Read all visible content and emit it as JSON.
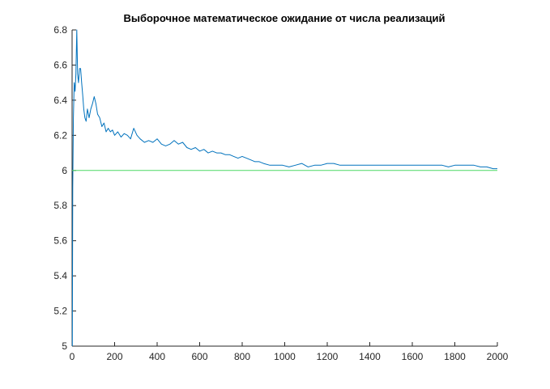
{
  "chart_data": {
    "type": "line",
    "title": "Выборочное математическое ожидание от числа реализаций",
    "xlabel": "",
    "ylabel": "",
    "xlim": [
      0,
      2000
    ],
    "ylim": [
      5,
      6.8
    ],
    "grid": false,
    "x_ticks": [
      "0",
      "200",
      "400",
      "600",
      "800",
      "1000",
      "1200",
      "1400",
      "1600",
      "1800",
      "2000"
    ],
    "y_ticks": [
      "5",
      "5.2",
      "5.4",
      "5.6",
      "5.8",
      "6",
      "6.2",
      "6.4",
      "6.6",
      "6.8"
    ],
    "series": [
      {
        "color": "#0072bd",
        "x": [
          1,
          3,
          6,
          10,
          14,
          18,
          22,
          26,
          30,
          35,
          40,
          45,
          50,
          55,
          60,
          66,
          72,
          80,
          88,
          96,
          104,
          112,
          120,
          130,
          140,
          150,
          160,
          170,
          180,
          190,
          200,
          215,
          230,
          245,
          260,
          275,
          290,
          305,
          320,
          340,
          360,
          380,
          400,
          420,
          440,
          460,
          480,
          500,
          520,
          540,
          560,
          580,
          600,
          620,
          640,
          660,
          680,
          700,
          720,
          740,
          760,
          780,
          800,
          820,
          840,
          860,
          880,
          900,
          930,
          960,
          990,
          1020,
          1050,
          1080,
          1110,
          1140,
          1170,
          1200,
          1230,
          1260,
          1290,
          1320,
          1350,
          1380,
          1410,
          1440,
          1470,
          1500,
          1530,
          1560,
          1590,
          1620,
          1650,
          1680,
          1710,
          1740,
          1770,
          1800,
          1830,
          1860,
          1890,
          1920,
          1950,
          1980,
          2000
        ],
        "y": [
          5.0,
          5.9,
          6.3,
          6.5,
          6.45,
          6.55,
          6.8,
          6.55,
          6.5,
          6.58,
          6.58,
          6.5,
          6.43,
          6.35,
          6.3,
          6.28,
          6.35,
          6.3,
          6.35,
          6.38,
          6.42,
          6.38,
          6.32,
          6.3,
          6.25,
          6.27,
          6.22,
          6.24,
          6.22,
          6.23,
          6.2,
          6.22,
          6.19,
          6.21,
          6.2,
          6.18,
          6.24,
          6.2,
          6.18,
          6.16,
          6.17,
          6.16,
          6.18,
          6.15,
          6.14,
          6.15,
          6.17,
          6.15,
          6.16,
          6.13,
          6.12,
          6.13,
          6.11,
          6.12,
          6.1,
          6.11,
          6.1,
          6.1,
          6.09,
          6.09,
          6.08,
          6.07,
          6.08,
          6.07,
          6.06,
          6.05,
          6.05,
          6.04,
          6.03,
          6.03,
          6.03,
          6.02,
          6.03,
          6.04,
          6.02,
          6.03,
          6.03,
          6.04,
          6.04,
          6.03,
          6.03,
          6.03,
          6.03,
          6.03,
          6.03,
          6.03,
          6.03,
          6.03,
          6.03,
          6.03,
          6.03,
          6.03,
          6.03,
          6.03,
          6.03,
          6.03,
          6.02,
          6.03,
          6.03,
          6.03,
          6.03,
          6.02,
          6.02,
          6.01,
          6.01
        ]
      },
      {
        "color": "#4cd964",
        "x": [
          0,
          2000
        ],
        "y": [
          6,
          6
        ]
      }
    ]
  }
}
